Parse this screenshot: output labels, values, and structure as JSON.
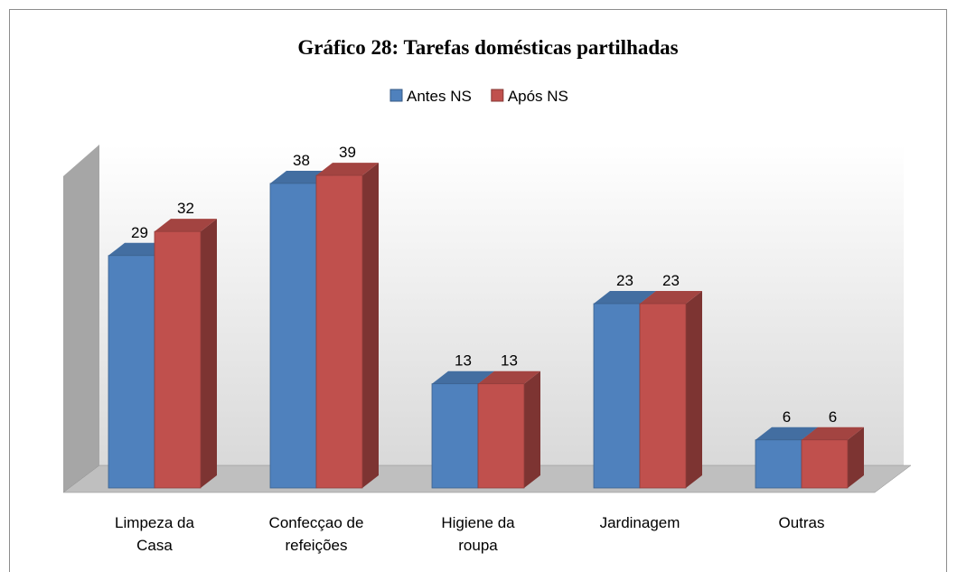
{
  "chart_data": {
    "type": "bar3d",
    "title": "Gráfico 28: Tarefas domésticas partilhadas",
    "categories": [
      "Limpeza da Casa",
      "Confecçao de refeições",
      "Higiene da roupa",
      "Jardinagem",
      "Outras"
    ],
    "series": [
      {
        "name": "Antes NS",
        "color": "#4f81bd",
        "values": [
          29,
          38,
          13,
          23,
          6
        ]
      },
      {
        "name": "Após NS",
        "color": "#c0504d",
        "values": [
          32,
          39,
          13,
          23,
          6
        ]
      }
    ],
    "legend": "top"
  }
}
